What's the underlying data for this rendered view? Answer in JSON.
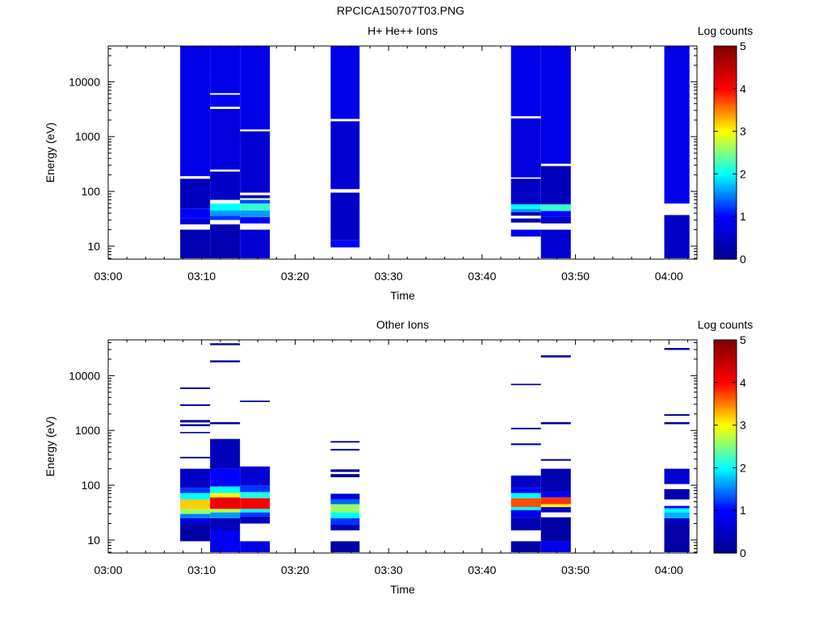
{
  "page": {
    "title": "RPCICA150707T03.PNG"
  },
  "colors": {
    "axis": "#000000",
    "background": "#ffffff",
    "colormap": [
      "#00008f",
      "#0000ff",
      "#00ffff",
      "#ffff00",
      "#ff0000",
      "#800000"
    ]
  },
  "chart_data": [
    {
      "type": "heatmap",
      "title": "H+ He++ Ions",
      "xlabel": "Time",
      "ylabel": "Energy (eV)",
      "colorbar_label": "Log counts",
      "yscale": "log",
      "xlim": [
        "03:00",
        "04:03"
      ],
      "ylim": [
        5.8,
        45000
      ],
      "x_ticks": [
        "03:00",
        "03:10",
        "03:20",
        "03:30",
        "03:40",
        "03:50",
        "04:00"
      ],
      "y_ticks": [
        10,
        100,
        1000,
        10000
      ],
      "y_tick_labels": [
        "10",
        "100",
        "1000",
        "10000"
      ],
      "color_range": [
        0,
        5
      ],
      "colorbar_ticks": [
        "0",
        "1",
        "2",
        "3",
        "4",
        "5"
      ],
      "columns": [
        {
          "t0": "03:07.7",
          "t1": "03:10.9",
          "cells": [
            {
              "e0": 6,
              "e1": 20,
              "v": 0.3
            },
            {
              "e0": 20,
              "e1": 25,
              "v": "none"
            },
            {
              "e0": 25,
              "e1": 32,
              "v": 0.6
            },
            {
              "e0": 32,
              "e1": 48,
              "v": 1.0
            },
            {
              "e0": 48,
              "e1": 170,
              "v": 0.4
            },
            {
              "e0": 170,
              "e1": 190,
              "v": "none"
            },
            {
              "e0": 190,
              "e1": 45000,
              "v": 0.8
            }
          ]
        },
        {
          "t0": "03:10.9",
          "t1": "03:14.1",
          "cells": [
            {
              "e0": 6,
              "e1": 25,
              "v": 0.3
            },
            {
              "e0": 25,
              "e1": 30,
              "v": "none"
            },
            {
              "e0": 30,
              "e1": 36,
              "v": 1.2
            },
            {
              "e0": 36,
              "e1": 45,
              "v": 1.6
            },
            {
              "e0": 45,
              "e1": 60,
              "v": 2.0
            },
            {
              "e0": 60,
              "e1": 70,
              "v": "none"
            },
            {
              "e0": 70,
              "e1": 230,
              "v": 0.5
            },
            {
              "e0": 230,
              "e1": 250,
              "v": "none"
            },
            {
              "e0": 250,
              "e1": 3200,
              "v": 0.7
            },
            {
              "e0": 3200,
              "e1": 3500,
              "v": "none"
            },
            {
              "e0": 3500,
              "e1": 5800,
              "v": 0.9
            },
            {
              "e0": 5800,
              "e1": 6200,
              "v": "none"
            },
            {
              "e0": 6200,
              "e1": 45000,
              "v": 0.8
            }
          ]
        },
        {
          "t0": "03:14.1",
          "t1": "03:17.3",
          "cells": [
            {
              "e0": 6,
              "e1": 20,
              "v": 0.6
            },
            {
              "e0": 20,
              "e1": 26,
              "v": "none"
            },
            {
              "e0": 26,
              "e1": 34,
              "v": 1.0
            },
            {
              "e0": 34,
              "e1": 45,
              "v": 1.6
            },
            {
              "e0": 45,
              "e1": 60,
              "v": 2.2
            },
            {
              "e0": 60,
              "e1": 70,
              "v": 1.3
            },
            {
              "e0": 70,
              "e1": 75,
              "v": "none"
            },
            {
              "e0": 75,
              "e1": 85,
              "v": 0.3
            },
            {
              "e0": 85,
              "e1": 95,
              "v": "none"
            },
            {
              "e0": 95,
              "e1": 1250,
              "v": 0.6
            },
            {
              "e0": 1250,
              "e1": 1350,
              "v": "none"
            },
            {
              "e0": 1350,
              "e1": 45000,
              "v": 0.8
            }
          ]
        },
        {
          "t0": "03:23.8",
          "t1": "03:26.9",
          "cells": [
            {
              "e0": 9.5,
              "e1": 13,
              "v": 1.0
            },
            {
              "e0": 13,
              "e1": 95,
              "v": 0.5
            },
            {
              "e0": 95,
              "e1": 110,
              "v": "none"
            },
            {
              "e0": 110,
              "e1": 1900,
              "v": 0.6
            },
            {
              "e0": 1900,
              "e1": 2100,
              "v": "none"
            },
            {
              "e0": 2100,
              "e1": 45000,
              "v": 0.8
            }
          ]
        },
        {
          "t0": "03:43.1",
          "t1": "03:46.3",
          "cells": [
            {
              "e0": 15,
              "e1": 20,
              "v": 0.8
            },
            {
              "e0": 20,
              "e1": 27,
              "v": "none"
            },
            {
              "e0": 27,
              "e1": 32,
              "v": 0.3
            },
            {
              "e0": 32,
              "e1": 36,
              "v": "none"
            },
            {
              "e0": 36,
              "e1": 42,
              "v": 0.3
            },
            {
              "e0": 42,
              "e1": 48,
              "v": 1.6
            },
            {
              "e0": 48,
              "e1": 58,
              "v": 2.0
            },
            {
              "e0": 58,
              "e1": 170,
              "v": 0.5
            },
            {
              "e0": 170,
              "e1": 180,
              "v": "none"
            },
            {
              "e0": 180,
              "e1": 2150,
              "v": 0.7
            },
            {
              "e0": 2150,
              "e1": 2350,
              "v": "none"
            },
            {
              "e0": 2350,
              "e1": 45000,
              "v": 0.8
            }
          ]
        },
        {
          "t0": "03:46.3",
          "t1": "03:49.5",
          "cells": [
            {
              "e0": 6,
              "e1": 20,
              "v": 0.6
            },
            {
              "e0": 20,
              "e1": 26,
              "v": "none"
            },
            {
              "e0": 26,
              "e1": 34,
              "v": 0.4
            },
            {
              "e0": 34,
              "e1": 44,
              "v": 1.0
            },
            {
              "e0": 44,
              "e1": 58,
              "v": 2.2
            },
            {
              "e0": 58,
              "e1": 290,
              "v": 0.4
            },
            {
              "e0": 290,
              "e1": 320,
              "v": "none"
            },
            {
              "e0": 320,
              "e1": 45000,
              "v": 0.8
            }
          ]
        },
        {
          "t0": "03:59.5",
          "t1": "04:02.2",
          "cells": [
            {
              "e0": 6,
              "e1": 37,
              "v": 0.5
            },
            {
              "e0": 37,
              "e1": 42,
              "v": "none"
            },
            {
              "e0": 60,
              "e1": 45000,
              "v": 0.8
            }
          ]
        }
      ]
    },
    {
      "type": "heatmap",
      "title": "Other Ions",
      "xlabel": "Time",
      "ylabel": "Energy (eV)",
      "colorbar_label": "Log counts",
      "yscale": "log",
      "xlim": [
        "03:00",
        "04:03"
      ],
      "ylim": [
        5.8,
        45000
      ],
      "x_ticks": [
        "03:00",
        "03:10",
        "03:20",
        "03:30",
        "03:40",
        "03:50",
        "04:00"
      ],
      "y_ticks": [
        10,
        100,
        1000,
        10000
      ],
      "y_tick_labels": [
        "10",
        "100",
        "1000",
        "10000"
      ],
      "color_range": [
        0,
        5
      ],
      "colorbar_ticks": [
        "0",
        "1",
        "2",
        "3",
        "4",
        "5"
      ],
      "columns": [
        {
          "t0": "03:07.7",
          "t1": "03:10.9",
          "cells": [
            {
              "e0": 9.5,
              "e1": 20,
              "v": 0.2
            },
            {
              "e0": 20,
              "e1": 25,
              "v": 0.7
            },
            {
              "e0": 25,
              "e1": 30,
              "v": 1.5
            },
            {
              "e0": 30,
              "e1": 37,
              "v": 2.6
            },
            {
              "e0": 37,
              "e1": 55,
              "v": 3.2
            },
            {
              "e0": 55,
              "e1": 72,
              "v": 2.0
            },
            {
              "e0": 72,
              "e1": 90,
              "v": 1.2
            },
            {
              "e0": 90,
              "e1": 200,
              "v": 0.5
            },
            {
              "e0": 310,
              "e1": 330,
              "v": 0.1
            },
            {
              "e0": 890,
              "e1": 940,
              "v": 0.1
            },
            {
              "e0": 1200,
              "e1": 1300,
              "v": 0.1
            },
            {
              "e0": 1400,
              "e1": 1550,
              "v": 0.1
            },
            {
              "e0": 2800,
              "e1": 3000,
              "v": 0.1
            },
            {
              "e0": 5700,
              "e1": 6100,
              "v": 0.1
            }
          ]
        },
        {
          "t0": "03:10.9",
          "t1": "03:14.1",
          "cells": [
            {
              "e0": 6,
              "e1": 15,
              "v": 0.9
            },
            {
              "e0": 15,
              "e1": 25,
              "v": 0.4
            },
            {
              "e0": 25,
              "e1": 32,
              "v": 1.6
            },
            {
              "e0": 32,
              "e1": 37,
              "v": 2.7
            },
            {
              "e0": 37,
              "e1": 60,
              "v": 4.1
            },
            {
              "e0": 60,
              "e1": 72,
              "v": 3.0
            },
            {
              "e0": 72,
              "e1": 95,
              "v": 2.0
            },
            {
              "e0": 95,
              "e1": 200,
              "v": 1.0
            },
            {
              "e0": 200,
              "e1": 700,
              "v": 0.4
            },
            {
              "e0": 1300,
              "e1": 1420,
              "v": 0.1
            },
            {
              "e0": 17500,
              "e1": 19000,
              "v": 0.1
            },
            {
              "e0": 36000,
              "e1": 39000,
              "v": 0.1
            }
          ]
        },
        {
          "t0": "03:14.1",
          "t1": "03:17.3",
          "cells": [
            {
              "e0": 6,
              "e1": 9.5,
              "v": 0.8
            },
            {
              "e0": 20,
              "e1": 27,
              "v": 0.4
            },
            {
              "e0": 27,
              "e1": 32,
              "v": 1.2
            },
            {
              "e0": 32,
              "e1": 37,
              "v": 2.0
            },
            {
              "e0": 37,
              "e1": 58,
              "v": 4.0
            },
            {
              "e0": 58,
              "e1": 75,
              "v": 2.1
            },
            {
              "e0": 75,
              "e1": 100,
              "v": 1.2
            },
            {
              "e0": 100,
              "e1": 220,
              "v": 0.6
            },
            {
              "e0": 3300,
              "e1": 3500,
              "v": 0.1
            }
          ]
        },
        {
          "t0": "03:23.8",
          "t1": "03:26.9",
          "cells": [
            {
              "e0": 6,
              "e1": 9.5,
              "v": 0.2
            },
            {
              "e0": 15,
              "e1": 19,
              "v": 0.3
            },
            {
              "e0": 19,
              "e1": 25,
              "v": 1.2
            },
            {
              "e0": 25,
              "e1": 32,
              "v": 2.0
            },
            {
              "e0": 32,
              "e1": 45,
              "v": 2.6
            },
            {
              "e0": 45,
              "e1": 55,
              "v": 1.4
            },
            {
              "e0": 55,
              "e1": 70,
              "v": 0.7
            },
            {
              "e0": 140,
              "e1": 160,
              "v": 0.1
            },
            {
              "e0": 175,
              "e1": 195,
              "v": 0.1
            },
            {
              "e0": 430,
              "e1": 460,
              "v": 0.1
            },
            {
              "e0": 600,
              "e1": 640,
              "v": 0.1
            }
          ]
        },
        {
          "t0": "03:43.1",
          "t1": "03:46.3",
          "cells": [
            {
              "e0": 6,
              "e1": 9.5,
              "v": 0.2
            },
            {
              "e0": 15,
              "e1": 25,
              "v": 0.3
            },
            {
              "e0": 25,
              "e1": 35,
              "v": 0.8
            },
            {
              "e0": 35,
              "e1": 40,
              "v": 2.0
            },
            {
              "e0": 40,
              "e1": 58,
              "v": 3.7
            },
            {
              "e0": 58,
              "e1": 72,
              "v": 2.0
            },
            {
              "e0": 72,
              "e1": 90,
              "v": 1.0
            },
            {
              "e0": 90,
              "e1": 150,
              "v": 0.5
            },
            {
              "e0": 540,
              "e1": 580,
              "v": 0.1
            },
            {
              "e0": 1050,
              "e1": 1120,
              "v": 0.1
            },
            {
              "e0": 6700,
              "e1": 7100,
              "v": 0.1
            }
          ]
        },
        {
          "t0": "03:46.3",
          "t1": "03:49.5",
          "cells": [
            {
              "e0": 6,
              "e1": 9.5,
              "v": 0.8
            },
            {
              "e0": 9.5,
              "e1": 26,
              "v": 0.2
            },
            {
              "e0": 32,
              "e1": 40,
              "v": 0.5
            },
            {
              "e0": 40,
              "e1": 45,
              "v": 3.0
            },
            {
              "e0": 45,
              "e1": 60,
              "v": 3.8
            },
            {
              "e0": 60,
              "e1": 75,
              "v": 1.0
            },
            {
              "e0": 75,
              "e1": 200,
              "v": 0.3
            },
            {
              "e0": 280,
              "e1": 300,
              "v": 0.1
            },
            {
              "e0": 1300,
              "e1": 1420,
              "v": 0.1
            },
            {
              "e0": 21500,
              "e1": 23500,
              "v": 0.1
            }
          ]
        },
        {
          "t0": "03:59.5",
          "t1": "04:02.2",
          "cells": [
            {
              "e0": 6,
              "e1": 20,
              "v": 0.2
            },
            {
              "e0": 20,
              "e1": 25,
              "v": 0.5
            },
            {
              "e0": 25,
              "e1": 32,
              "v": 1.7
            },
            {
              "e0": 32,
              "e1": 38,
              "v": 2.0
            },
            {
              "e0": 38,
              "e1": 42,
              "v": 1.0
            },
            {
              "e0": 55,
              "e1": 85,
              "v": 0.3
            },
            {
              "e0": 105,
              "e1": 200,
              "v": 0.6
            },
            {
              "e0": 1300,
              "e1": 1420,
              "v": 0.1
            },
            {
              "e0": 1850,
              "e1": 1980,
              "v": 0.1
            },
            {
              "e0": 29500,
              "e1": 32000,
              "v": 0.1
            }
          ]
        }
      ]
    }
  ]
}
